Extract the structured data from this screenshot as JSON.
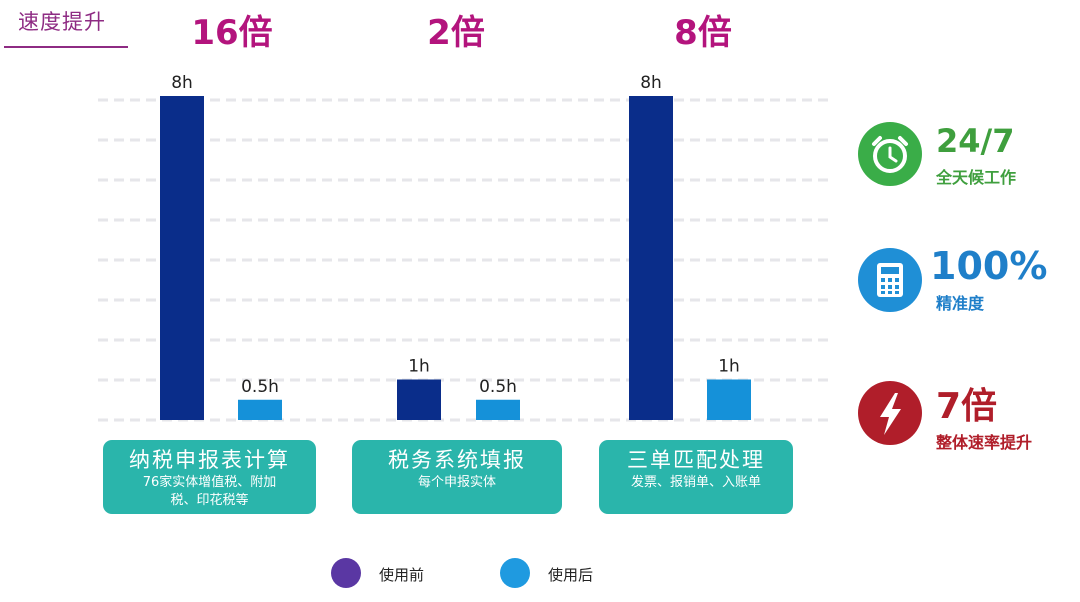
{
  "header": {
    "title": "速度提升"
  },
  "chart_data": {
    "type": "bar",
    "categories": [
      "纳税申报表计算",
      "税务系统填报",
      "三单匹配处理"
    ],
    "category_subtitles": [
      "76家实体增值税、附加税、印花税等",
      "每个申报实体",
      "发票、报销单、入账单"
    ],
    "multipliers": [
      "16倍",
      "2倍",
      "8倍"
    ],
    "series": [
      {
        "name": "使用前",
        "values": [
          8,
          1,
          8
        ],
        "labels": [
          "8h",
          "1h",
          "8h"
        ],
        "color": "#0a2d8a"
      },
      {
        "name": "使用后",
        "values": [
          0.5,
          0.5,
          1
        ],
        "labels": [
          "0.5h",
          "0.5h",
          "1h"
        ],
        "color": "#1591d9"
      }
    ],
    "ylim": [
      0,
      8
    ],
    "grid": true,
    "legend_position": "bottom"
  },
  "legend": [
    {
      "label": "使用前",
      "color": "#5a37a3"
    },
    {
      "label": "使用后",
      "color": "#1f9ae0"
    }
  ],
  "kpis": [
    {
      "value": "24/7",
      "label": "全天候工作",
      "icon": "clock-icon",
      "color": "#3aad48",
      "text_color": "#3f9f3e"
    },
    {
      "value": "100%",
      "label": "精准度",
      "icon": "calculator-icon",
      "color": "#1f8fd6",
      "text_color": "#1f7fc9"
    },
    {
      "value": "7倍",
      "label": "整体速率提升",
      "icon": "lightning-icon",
      "color": "#b01e2a",
      "text_color": "#b01e2a"
    }
  ]
}
